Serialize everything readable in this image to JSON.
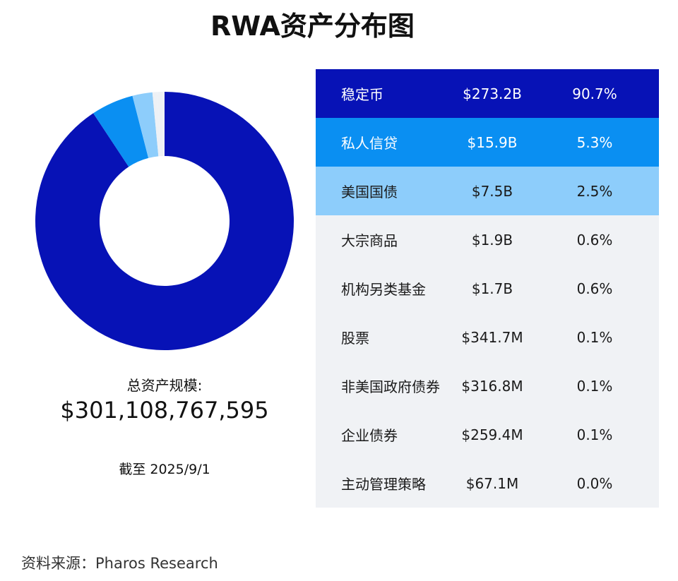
{
  "chart_data": {
    "type": "pie",
    "title": "RWA资产分布图",
    "donut": true,
    "categories": [
      "稳定币",
      "私人信贷",
      "美国国债",
      "大宗商品",
      "机构另类基金",
      "股票",
      "非美国政府债券",
      "企业债券",
      "主动管理策略"
    ],
    "amounts": [
      "$273.2B",
      "$15.9B",
      "$7.5B",
      "$1.9B",
      "$1.7B",
      "$341.7M",
      "$316.8M",
      "$259.4M",
      "$67.1M"
    ],
    "percents": [
      90.7,
      5.3,
      2.5,
      0.6,
      0.6,
      0.1,
      0.1,
      0.1,
      0.0
    ],
    "colors": [
      "#0712b6",
      "#0a8ff2",
      "#8dcdfb",
      "#eef1f5",
      "#eef1f5",
      "#eef1f5",
      "#eef1f5",
      "#eef1f5",
      "#eef1f5"
    ],
    "row_text_colors": [
      "#ffffff",
      "#ffffff",
      "#1a1a1a",
      "#1a1a1a",
      "#1a1a1a",
      "#1a1a1a",
      "#1a1a1a",
      "#1a1a1a",
      "#1a1a1a"
    ],
    "row_bg": [
      "#0712b6",
      "#0a8ff2",
      "#8dcdfb",
      null,
      null,
      null,
      null,
      null,
      null
    ]
  },
  "summary": {
    "total_label": "总资产规模:",
    "total_value": "$301,108,767,595",
    "date": "截至 2025/9/1"
  },
  "source": "资料来源：Pharos Research"
}
